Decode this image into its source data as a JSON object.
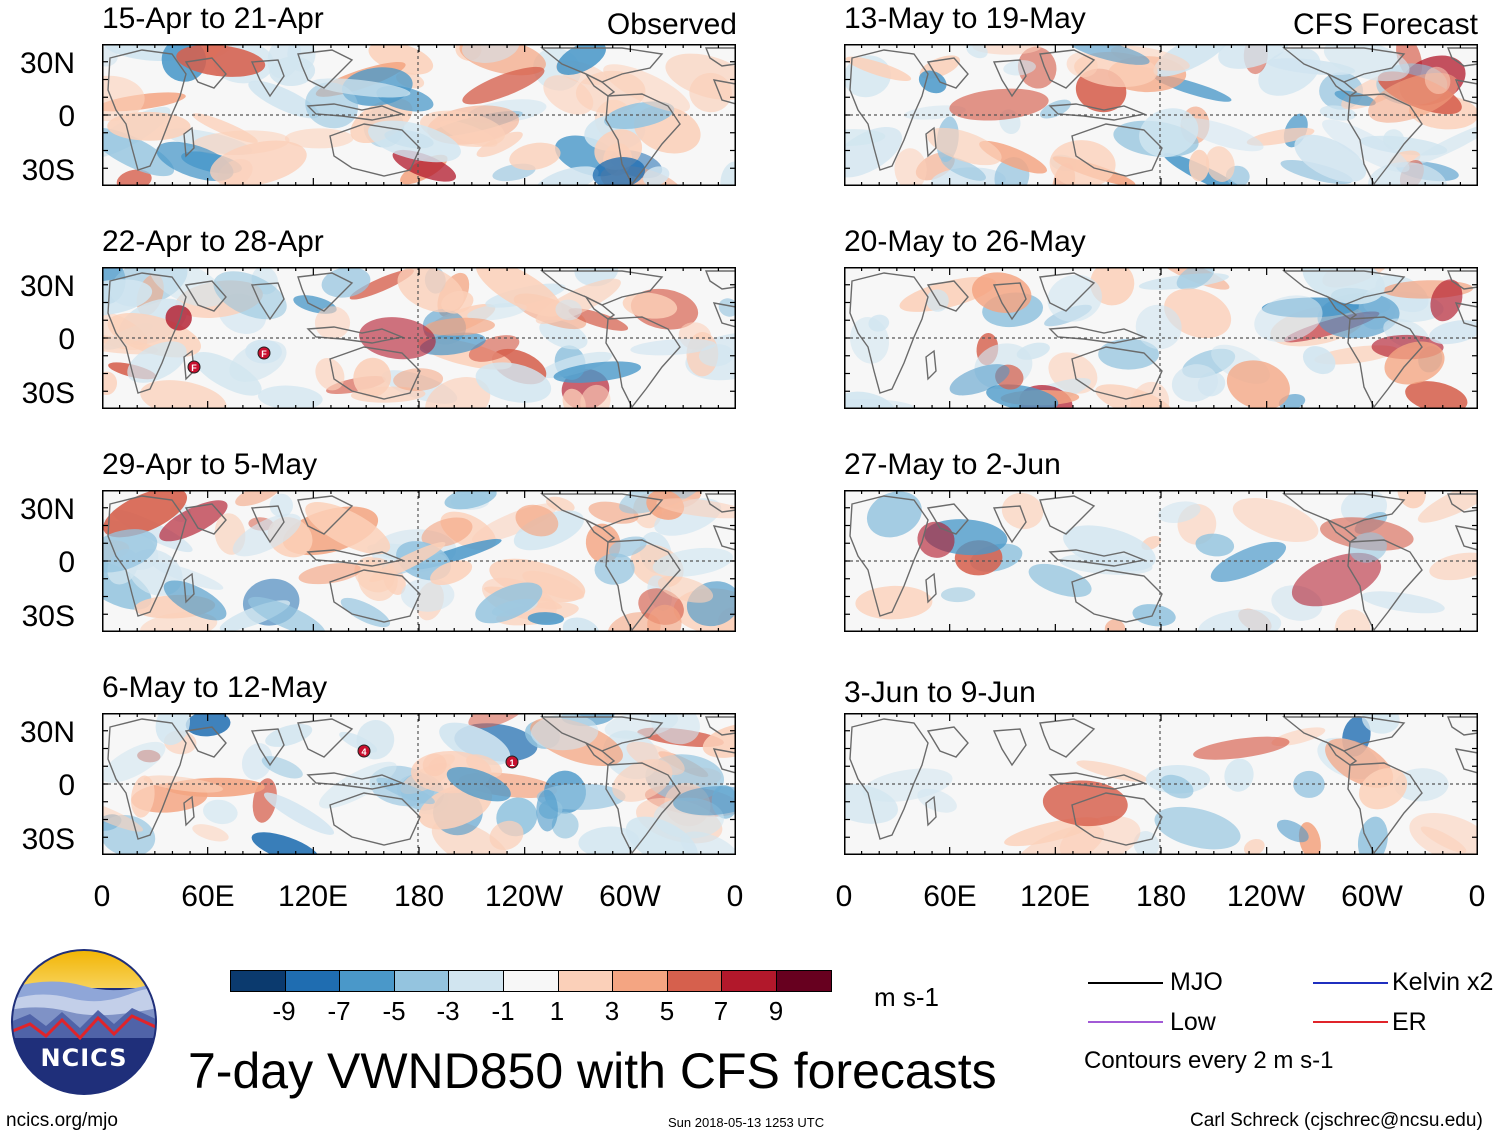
{
  "title": "7-day VWND850 with CFS forecasts",
  "footer": {
    "url": "ncics.org/mjo",
    "timestamp": "Sun 2018-05-13 1253 UTC",
    "credit": "Carl Schreck (cjschrec@ncsu.edu)"
  },
  "logo": {
    "text": "NCICS"
  },
  "columns": {
    "left_tag": "Observed",
    "right_tag": "CFS Forecast"
  },
  "panels_left": [
    {
      "title": "15-Apr to 21-Apr"
    },
    {
      "title": "22-Apr to 28-Apr"
    },
    {
      "title": "29-Apr to 5-May"
    },
    {
      "title": "6-May to 12-May"
    }
  ],
  "panels_right": [
    {
      "title": "13-May to 19-May"
    },
    {
      "title": "20-May to 26-May"
    },
    {
      "title": "27-May to 2-Jun"
    },
    {
      "title": "3-Jun to 9-Jun"
    }
  ],
  "lat_labels": [
    "30N",
    "0",
    "30S"
  ],
  "lon_labels": [
    "0",
    "60E",
    "120E",
    "180",
    "120W",
    "60W",
    "0"
  ],
  "colorbar": {
    "units": "m s-1",
    "ticks": [
      "-9",
      "-7",
      "-5",
      "-3",
      "-1",
      "1",
      "3",
      "5",
      "7",
      "9"
    ],
    "colors": [
      "#0b3a6e",
      "#1f6db1",
      "#4a98c9",
      "#94c4df",
      "#d1e5f0",
      "#f7f7f7",
      "#fbd0b9",
      "#f4a582",
      "#d6604d",
      "#b2182b",
      "#67001f"
    ]
  },
  "line_legend": {
    "items": [
      {
        "label": "MJO",
        "color": "#000000"
      },
      {
        "label": "Kelvin x2",
        "color": "#1f2fbf"
      },
      {
        "label": "Low",
        "color": "#a25ad6"
      },
      {
        "label": "ER",
        "color": "#e0242a"
      }
    ],
    "contours_note": "Contours every 2 m s-1"
  },
  "storm_markers": [
    {
      "panel": "left-2",
      "label": "F"
    },
    {
      "panel": "left-2",
      "label": "F"
    },
    {
      "panel": "left-4",
      "label": "4"
    },
    {
      "panel": "left-4",
      "label": "1"
    }
  ]
}
